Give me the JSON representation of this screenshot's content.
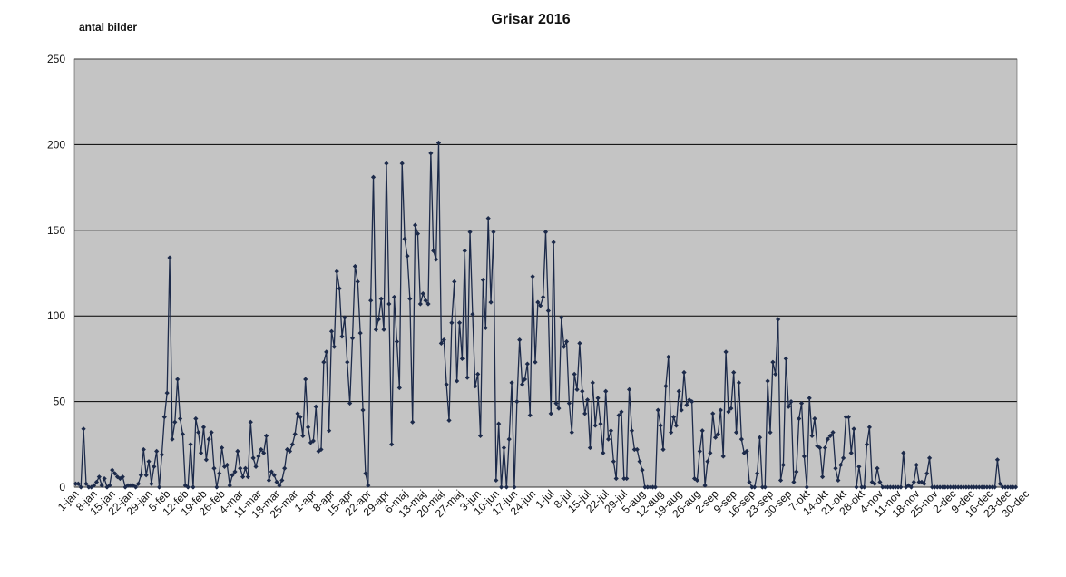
{
  "chart_data": {
    "type": "line",
    "title": "Grisar 2016",
    "ylabel": "antal bilder",
    "xlabel": "",
    "ylim": [
      0,
      250
    ],
    "yticks": [
      0,
      50,
      100,
      150,
      200,
      250
    ],
    "grid": "horizontal",
    "legend": "none",
    "colors": {
      "plot_background": "#c4c4c4",
      "line": "#1c2a4a",
      "marker": "#1c2a4a",
      "grid": "#000000"
    },
    "x_tick_labels": [
      "1-jan",
      "8-jan",
      "15-jan",
      "22-jan",
      "29-jan",
      "5-feb",
      "12-feb",
      "19-feb",
      "26-feb",
      "4-mar",
      "11-mar",
      "18-mar",
      "25-mar",
      "1-apr",
      "8-apr",
      "15-apr",
      "22-apr",
      "29-apr",
      "6-maj",
      "13-maj",
      "20-maj",
      "27-maj",
      "3-jun",
      "10-jun",
      "17-jun",
      "24-jun",
      "1-jul",
      "8-jul",
      "15-jul",
      "22-jul",
      "29-jul",
      "5-aug",
      "12-aug",
      "19-aug",
      "26-aug",
      "2-sep",
      "9-sep",
      "16-sep",
      "23-sep",
      "30-sep",
      "7-okt",
      "14-okt",
      "21-okt",
      "28-okt",
      "4-nov",
      "11-nov",
      "18-nov",
      "25-nov",
      "2-dec",
      "9-dec",
      "16-dec",
      "23-dec",
      "30-dec"
    ],
    "x_start": "1-jan",
    "series": [
      {
        "values": [
          2,
          2,
          0,
          34,
          2,
          0,
          0,
          1,
          3,
          6,
          1,
          5,
          0,
          1,
          10,
          8,
          6,
          5,
          6,
          0,
          1,
          1,
          1,
          0,
          2,
          7,
          22,
          7,
          15,
          2,
          12,
          21,
          0,
          19,
          41,
          55,
          134,
          28,
          38,
          63,
          40,
          31,
          1,
          0,
          25,
          0,
          40,
          32,
          20,
          35,
          16,
          28,
          32,
          11,
          0,
          8,
          23,
          12,
          13,
          1,
          7,
          9,
          21,
          11,
          6,
          11,
          6,
          38,
          17,
          12,
          18,
          22,
          20,
          30,
          4,
          9,
          7,
          3,
          1,
          4,
          11,
          22,
          21,
          25,
          31,
          43,
          41,
          30,
          63,
          35,
          26,
          27,
          47,
          21,
          22,
          73,
          79,
          33,
          91,
          82,
          126,
          116,
          88,
          99,
          73,
          49,
          87,
          129,
          120,
          90,
          45,
          8,
          1,
          109,
          181,
          92,
          98,
          110,
          92,
          189,
          107,
          25,
          111,
          85,
          58,
          189,
          145,
          135,
          110,
          38,
          153,
          148,
          107,
          113,
          109,
          107,
          195,
          138,
          133,
          201,
          84,
          86,
          60,
          39,
          96,
          120,
          62,
          96,
          75,
          138,
          64,
          149,
          101,
          59,
          66,
          30,
          121,
          93,
          157,
          108,
          149,
          4,
          37,
          0,
          23,
          0,
          28,
          61,
          0,
          50,
          86,
          60,
          63,
          72,
          42,
          123,
          73,
          108,
          106,
          111,
          149,
          103,
          43,
          143,
          49,
          46,
          99,
          82,
          85,
          49,
          32,
          66,
          57,
          84,
          56,
          43,
          51,
          23,
          61,
          36,
          52,
          37,
          20,
          56,
          28,
          33,
          15,
          5,
          42,
          44,
          5,
          5,
          57,
          33,
          22,
          22,
          15,
          10,
          0,
          0,
          0,
          0,
          0,
          45,
          36,
          22,
          59,
          76,
          32,
          41,
          36,
          56,
          45,
          67,
          48,
          51,
          50,
          5,
          4,
          21,
          33,
          1,
          15,
          20,
          43,
          29,
          31,
          45,
          18,
          79,
          44,
          46,
          67,
          32,
          61,
          28,
          20,
          21,
          3,
          0,
          0,
          8,
          29,
          0,
          0,
          62,
          32,
          73,
          66,
          98,
          4,
          13,
          75,
          47,
          50,
          3,
          9,
          40,
          49,
          18,
          0,
          52,
          30,
          40,
          24,
          23,
          6,
          23,
          28,
          30,
          32,
          11,
          4,
          13,
          17,
          41,
          41,
          20,
          34,
          0,
          12,
          0,
          0,
          25,
          35,
          3,
          2,
          11,
          3,
          0,
          0,
          0,
          0,
          0,
          0,
          0,
          0,
          20,
          0,
          1,
          0,
          3,
          13,
          3,
          3,
          2,
          8,
          17,
          0,
          0,
          0,
          0,
          0,
          0,
          0,
          0,
          0,
          0,
          0,
          0,
          0,
          0,
          0,
          0,
          0,
          0,
          0,
          0,
          0,
          0,
          0,
          0,
          0,
          16,
          2,
          0,
          0,
          0,
          0,
          0,
          0
        ]
      }
    ]
  }
}
